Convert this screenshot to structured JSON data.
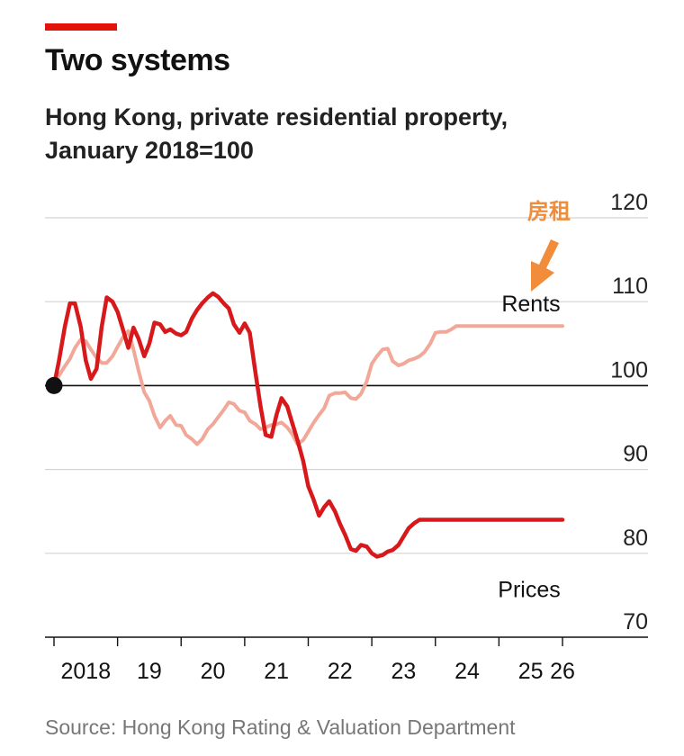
{
  "header": {
    "title": "Two systems",
    "subtitle_line1": "Hong Kong, private residential property,",
    "subtitle_line2": "January 2018=100",
    "accent_color": "#e3120b"
  },
  "source": "Source: Hong Kong Rating & Valuation Department",
  "chart_data": {
    "type": "line",
    "ylim": [
      70,
      120
    ],
    "y_ticks": [
      120,
      110,
      100,
      90,
      80,
      70
    ],
    "x_range": [
      2018.0,
      2026.0
    ],
    "x_ticks": [
      {
        "label": "2018",
        "pos": 2018.5
      },
      {
        "label": "19",
        "pos": 2019.5
      },
      {
        "label": "20",
        "pos": 2020.5
      },
      {
        "label": "21",
        "pos": 2021.5
      },
      {
        "label": "22",
        "pos": 2022.5
      },
      {
        "label": "23",
        "pos": 2023.5
      },
      {
        "label": "24",
        "pos": 2024.5
      },
      {
        "label": "25",
        "pos": 2025.5
      },
      {
        "label": "26",
        "pos": 2026.0
      }
    ],
    "reference_value": 100,
    "annotation": "房租",
    "annotation_color": "#f08c3a",
    "series": [
      {
        "name": "Rents",
        "color": "#f1a898",
        "x": [
          2018.0,
          2018.08,
          2018.17,
          2018.25,
          2018.33,
          2018.42,
          2018.5,
          2018.58,
          2018.67,
          2018.75,
          2018.83,
          2018.92,
          2019.0,
          2019.08,
          2019.17,
          2019.25,
          2019.33,
          2019.42,
          2019.5,
          2019.58,
          2019.67,
          2019.75,
          2019.83,
          2019.92,
          2020.0,
          2020.08,
          2020.17,
          2020.25,
          2020.33,
          2020.42,
          2020.5,
          2020.58,
          2020.67,
          2020.75,
          2020.83,
          2020.92,
          2021.0,
          2021.08,
          2021.17,
          2021.25,
          2021.33,
          2021.42,
          2021.5,
          2021.58,
          2021.67,
          2021.75,
          2021.83,
          2021.92,
          2022.0,
          2022.08,
          2022.17,
          2022.25,
          2022.33,
          2022.42,
          2022.5,
          2022.58,
          2022.67,
          2022.75,
          2022.83,
          2022.92,
          2023.0,
          2023.08,
          2023.17,
          2023.25,
          2023.33,
          2023.42,
          2023.5,
          2023.58,
          2023.67,
          2023.75,
          2023.83,
          2023.92,
          2024.0,
          2024.08,
          2024.17,
          2024.25,
          2024.33,
          2024.42,
          2024.5,
          2024.58,
          2024.67,
          2024.75,
          2024.83,
          2024.92,
          2025.0,
          2025.08,
          2025.17,
          2025.25,
          2025.33,
          2025.42,
          2025.5,
          2025.58,
          2025.67,
          2025.75,
          2025.83,
          2025.92,
          2026.0
        ],
        "values": [
          100.0,
          101.2,
          102.3,
          103.2,
          104.5,
          105.5,
          105.3,
          104.3,
          103.3,
          102.7,
          102.7,
          103.5,
          104.6,
          105.7,
          106.5,
          104.3,
          101.8,
          99.2,
          98.2,
          96.4,
          95.0,
          95.8,
          96.4,
          95.3,
          95.2,
          94.1,
          93.6,
          93.0,
          93.6,
          94.8,
          95.4,
          96.2,
          97.1,
          98.0,
          97.8,
          97.0,
          96.8,
          95.8,
          95.4,
          94.8,
          95.0,
          95.3,
          95.4,
          95.6,
          95.0,
          94.2,
          93.0,
          93.5,
          94.5,
          95.5,
          96.5,
          97.3,
          98.8,
          99.1,
          99.1,
          99.2,
          98.5,
          98.4,
          99.0,
          100.5,
          102.6,
          103.5,
          104.3,
          104.4,
          102.9,
          102.4,
          102.6,
          103.0,
          103.2,
          103.5,
          104.0,
          105.0,
          106.3,
          106.4,
          106.4,
          106.7,
          107.1,
          107.1,
          107.1,
          107.1,
          107.1,
          107.1,
          107.1,
          107.1,
          107.1,
          107.1,
          107.1,
          107.1,
          107.1,
          107.1,
          107.1,
          107.1,
          107.1,
          107.1,
          107.1,
          107.1,
          107.1
        ]
      },
      {
        "name": "Prices",
        "color": "#d7191c",
        "x": [
          2018.0,
          2018.08,
          2018.17,
          2018.25,
          2018.33,
          2018.42,
          2018.5,
          2018.58,
          2018.67,
          2018.75,
          2018.83,
          2018.92,
          2019.0,
          2019.08,
          2019.17,
          2019.25,
          2019.33,
          2019.42,
          2019.5,
          2019.58,
          2019.67,
          2019.75,
          2019.83,
          2019.92,
          2020.0,
          2020.08,
          2020.17,
          2020.25,
          2020.33,
          2020.42,
          2020.5,
          2020.58,
          2020.67,
          2020.75,
          2020.83,
          2020.92,
          2021.0,
          2021.08,
          2021.17,
          2021.25,
          2021.33,
          2021.42,
          2021.5,
          2021.58,
          2021.67,
          2021.75,
          2021.83,
          2021.92,
          2022.0,
          2022.08,
          2022.17,
          2022.25,
          2022.33,
          2022.42,
          2022.5,
          2022.58,
          2022.67,
          2022.75,
          2022.83,
          2022.92,
          2023.0,
          2023.08,
          2023.17,
          2023.25,
          2023.33,
          2023.42,
          2023.5,
          2023.58,
          2023.67,
          2023.75,
          2023.83,
          2023.92,
          2024.0,
          2024.08,
          2024.17,
          2024.25,
          2024.33,
          2024.42,
          2024.5,
          2024.58,
          2024.67,
          2024.75,
          2024.83,
          2024.92,
          2025.0,
          2025.08,
          2025.17,
          2025.25,
          2025.33,
          2025.42,
          2025.5,
          2025.58,
          2025.67,
          2025.75,
          2025.83,
          2025.92,
          2026.0
        ],
        "values": [
          100.0,
          103.0,
          107.0,
          109.8,
          109.8,
          107.0,
          103.0,
          100.8,
          102.0,
          107.0,
          110.5,
          110.0,
          108.8,
          106.8,
          104.5,
          106.9,
          105.6,
          103.5,
          105.0,
          107.5,
          107.3,
          106.4,
          106.7,
          106.2,
          106.0,
          106.4,
          108.0,
          109.0,
          109.8,
          110.5,
          111.0,
          110.6,
          109.8,
          109.2,
          107.3,
          106.3,
          107.4,
          106.3,
          101.5,
          97.5,
          94.1,
          93.9,
          96.5,
          98.5,
          97.5,
          95.5,
          93.5,
          91.0,
          88.0,
          86.5,
          84.5,
          85.5,
          86.2,
          85.0,
          83.5,
          82.2,
          80.5,
          80.3,
          81.0,
          80.8,
          80.0,
          79.6,
          79.8,
          80.2,
          80.4,
          81.0,
          82.0,
          83.0,
          83.6,
          84.0,
          84.0,
          84.0,
          84.0,
          84.0,
          84.0,
          84.0,
          84.0,
          84.0,
          84.0,
          84.0,
          84.0,
          84.0,
          84.0,
          84.0,
          84.0,
          84.0,
          84.0,
          84.0,
          84.0,
          84.0,
          84.0,
          84.0,
          84.0,
          84.0,
          84.0,
          84.0,
          84.0
        ]
      }
    ]
  }
}
